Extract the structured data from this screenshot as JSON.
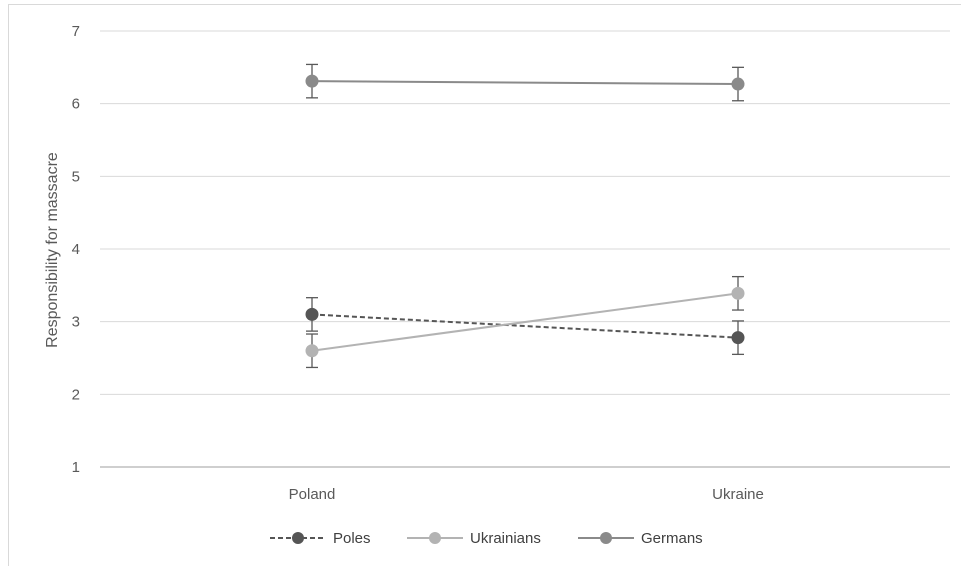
{
  "chart_data": {
    "type": "line",
    "title": "",
    "xlabel": "",
    "ylabel": "Responsibility for massacre",
    "categories": [
      "Poland",
      "Ukraine"
    ],
    "ylim": [
      1,
      7
    ],
    "yticks": [
      1,
      2,
      3,
      4,
      5,
      6,
      7
    ],
    "grid": true,
    "legend_position": "bottom",
    "series": [
      {
        "name": "Poles",
        "values": [
          3.1,
          2.78
        ],
        "error": [
          0.23,
          0.23
        ],
        "color": "#555555",
        "dashed": true
      },
      {
        "name": "Ukrainians",
        "values": [
          2.6,
          3.39
        ],
        "error": [
          0.23,
          0.23
        ],
        "color": "#b3b3b3",
        "dashed": false
      },
      {
        "name": "Germans",
        "values": [
          6.31,
          6.27
        ],
        "error": [
          0.23,
          0.23
        ],
        "color": "#8a8a8a",
        "dashed": false
      }
    ]
  }
}
